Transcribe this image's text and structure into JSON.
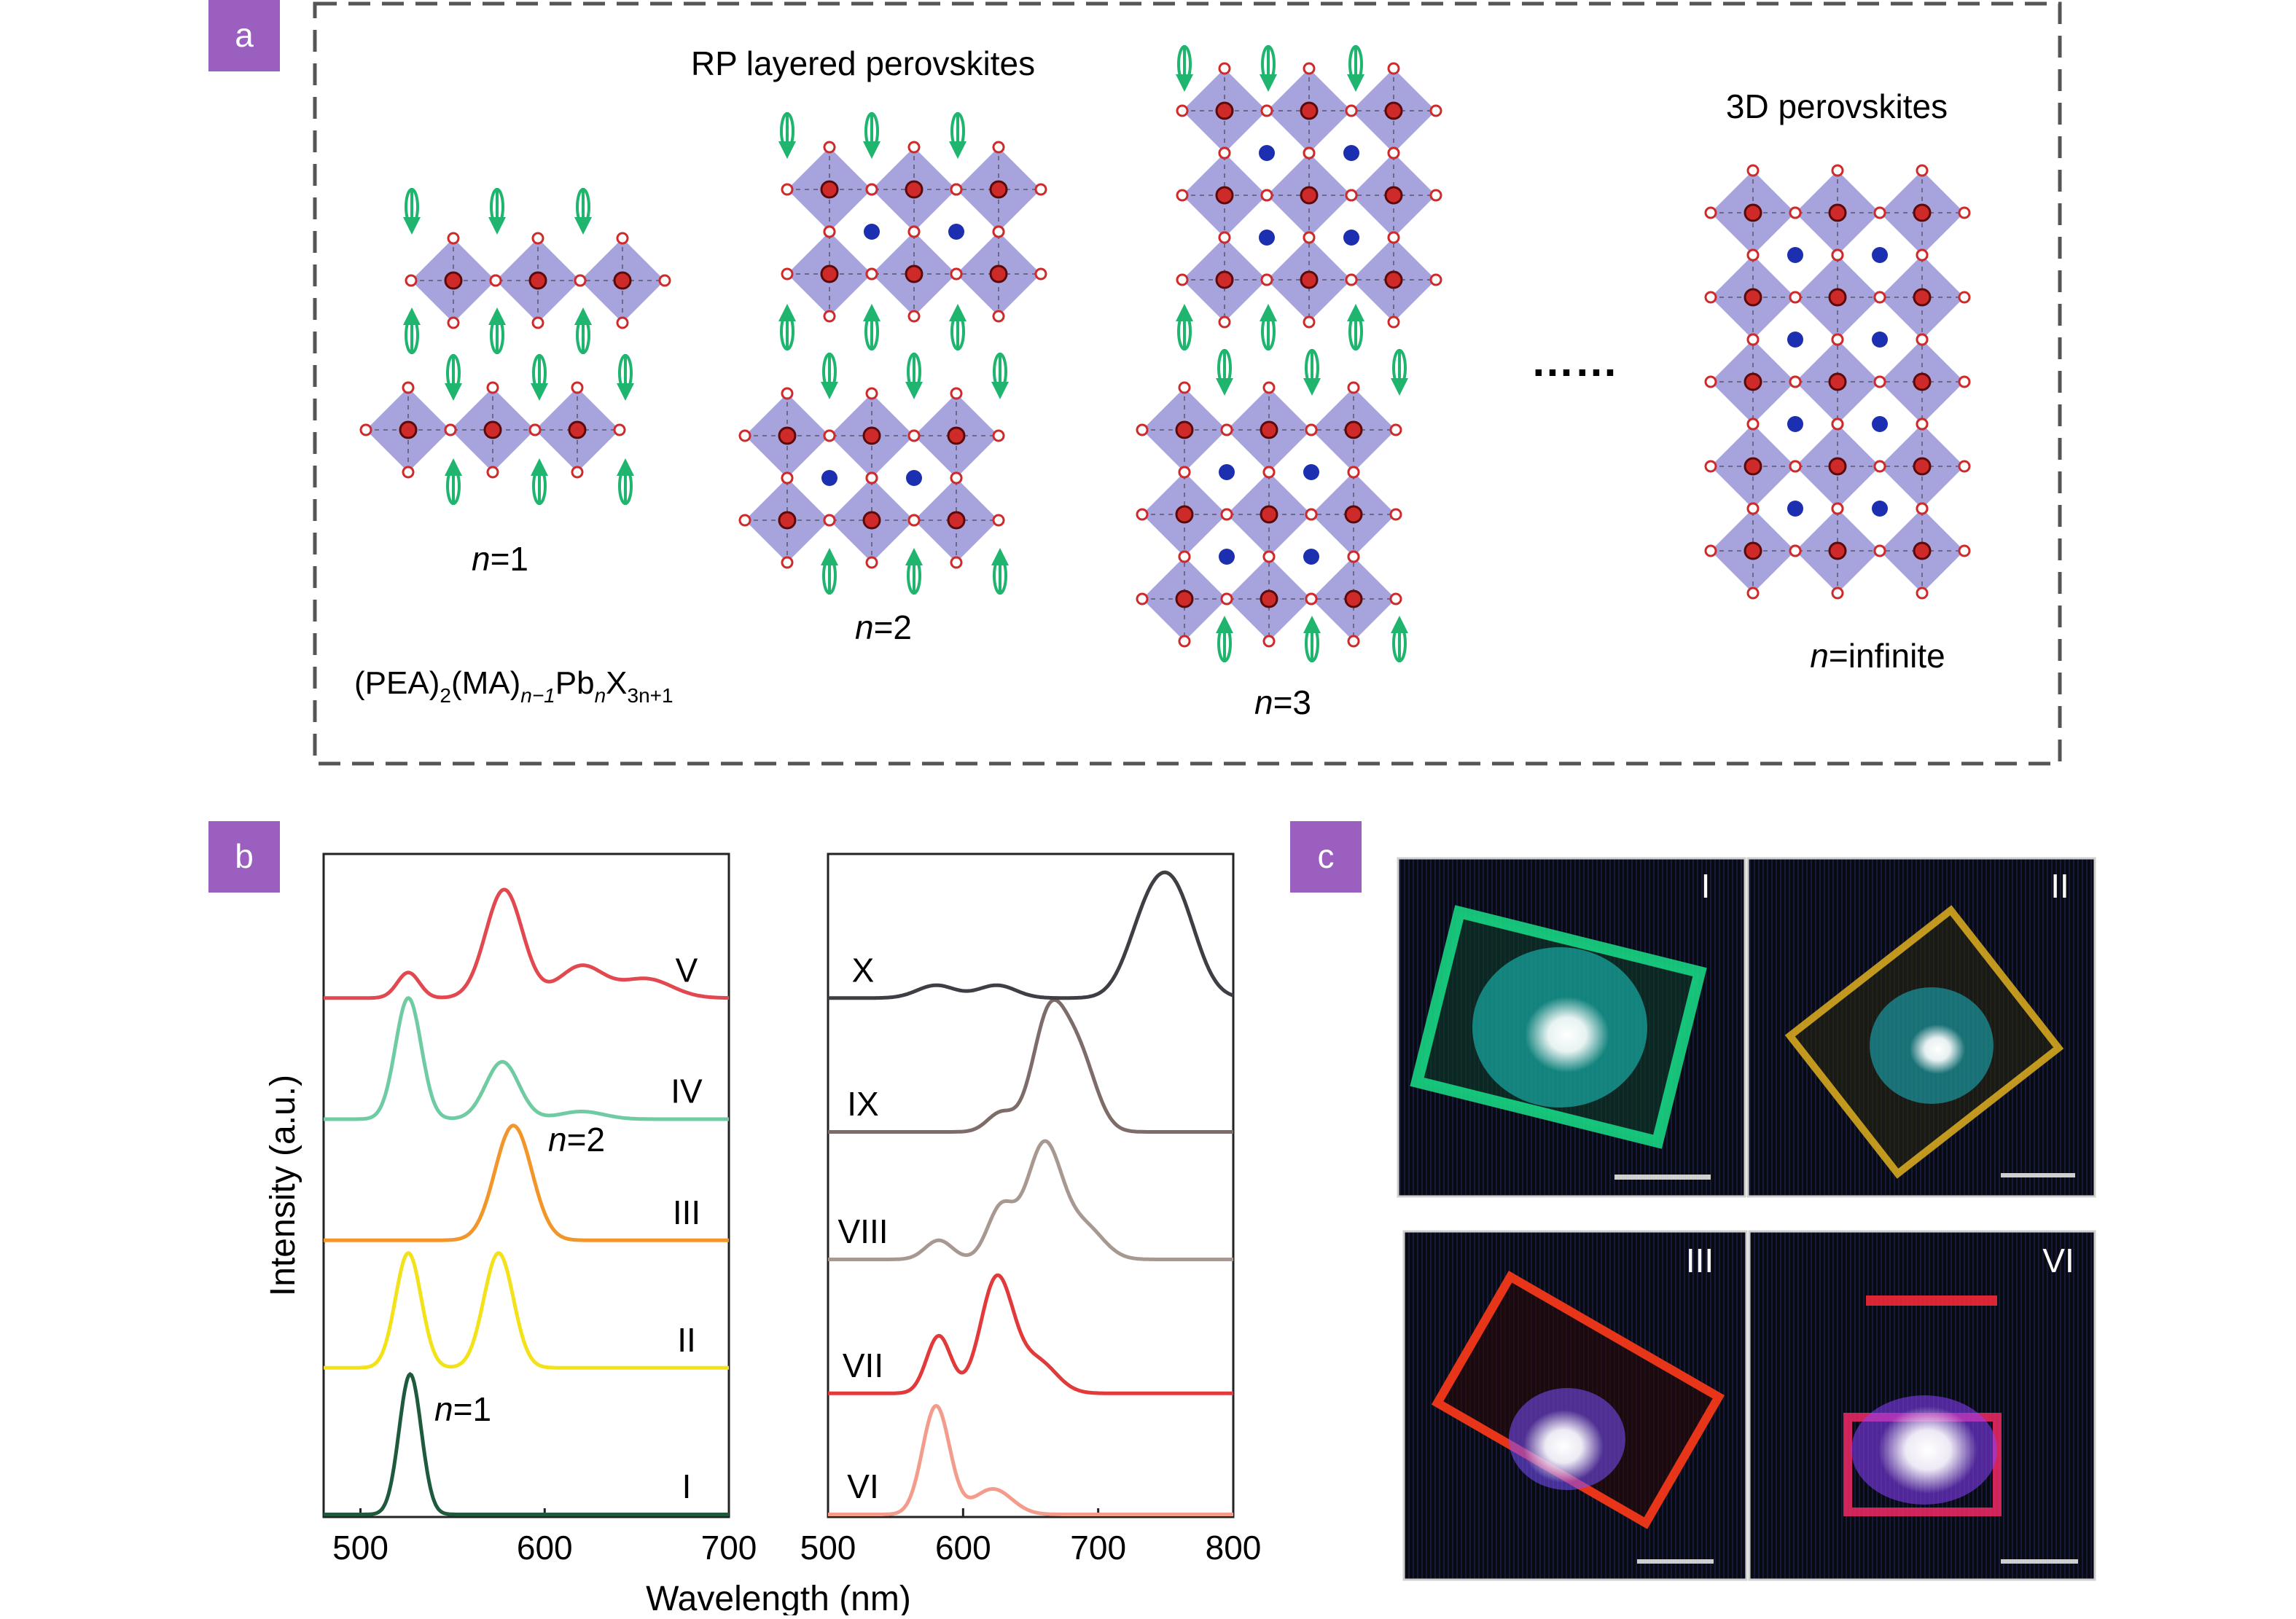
{
  "panel_a": {
    "letter": "a",
    "title_rp": "RP layered perovskites",
    "title_3d": "3D perovskites",
    "formula": {
      "pre": "(PEA)",
      "sub1": "2",
      "mid1": "(MA)",
      "sub2": "n−1",
      "mid2": "Pb",
      "sub3": "n",
      "mid3": "X",
      "sub4": "3n+1"
    },
    "labels": [
      {
        "n": "n",
        "rest": "=1"
      },
      {
        "n": "n",
        "rest": "=2"
      },
      {
        "n": "n",
        "rest": "=3"
      },
      {
        "n": "n",
        "rest": "=infinite"
      }
    ],
    "ellipsis": "……",
    "colors": {
      "octahedron": "#a7a3dc",
      "atom_red": "#cf2a2a",
      "atom_blue": "#1c2fb0",
      "arrow_green": "#1fb56e",
      "frame": "#555555"
    }
  },
  "panel_b": {
    "letter": "b",
    "ylabel": "Intensity (a.u.)",
    "xlabel": "Wavelength (nm)",
    "annotations": [
      {
        "n": "n",
        "rest": "=1"
      },
      {
        "n": "n",
        "rest": "=2"
      }
    ]
  },
  "panel_c": {
    "letter": "c",
    "images": [
      {
        "label": "I",
        "glow": "#19e08a"
      },
      {
        "label": "II",
        "glow": "#e0b020"
      },
      {
        "label": "III",
        "glow": "#ff3a1a"
      },
      {
        "label": "VI",
        "glow": "#ff2a3a"
      }
    ]
  },
  "badge_color": "#9b5fc0",
  "chart_data": [
    {
      "type": "line",
      "xlim": [
        480,
        700
      ],
      "xticks": [
        500,
        600,
        700
      ],
      "ylim": [
        0,
        5.2
      ],
      "series": [
        {
          "name": "I",
          "color": "#1e5a3c",
          "offset": 0,
          "peaks": [
            [
              527,
              1.1,
              6
            ]
          ]
        },
        {
          "name": "II",
          "color": "#f3e21a",
          "offset": 1.15,
          "peaks": [
            [
              526,
              0.9,
              7
            ],
            [
              575,
              0.9,
              8
            ]
          ]
        },
        {
          "name": "III",
          "color": "#f3962a",
          "offset": 2.15,
          "peaks": [
            [
              583,
              0.9,
              10
            ]
          ]
        },
        {
          "name": "IV",
          "color": "#6fcca2",
          "offset": 3.1,
          "peaks": [
            [
              526,
              0.95,
              7
            ],
            [
              577,
              0.45,
              9
            ],
            [
              620,
              0.06,
              12
            ]
          ]
        },
        {
          "name": "V",
          "color": "#e2484f",
          "offset": 4.05,
          "peaks": [
            [
              526,
              0.2,
              6
            ],
            [
              578,
              0.85,
              10
            ],
            [
              620,
              0.25,
              12
            ],
            [
              655,
              0.15,
              14
            ]
          ]
        }
      ]
    },
    {
      "type": "line",
      "xlim": [
        500,
        800
      ],
      "xticks": [
        500,
        600,
        700,
        800
      ],
      "ylim": [
        0,
        5.2
      ],
      "series": [
        {
          "name": "VI",
          "color": "#f39c8c",
          "offset": 0,
          "peaks": [
            [
              580,
              0.85,
              10
            ],
            [
              622,
              0.2,
              14
            ]
          ]
        },
        {
          "name": "VII",
          "color": "#e23a3a",
          "offset": 0.95,
          "peaks": [
            [
              582,
              0.45,
              9
            ],
            [
              625,
              0.9,
              12
            ],
            [
              655,
              0.25,
              14
            ]
          ]
        },
        {
          "name": "VIII",
          "color": "#a89892",
          "offset": 2.0,
          "peaks": [
            [
              582,
              0.15,
              10
            ],
            [
              628,
              0.4,
              10
            ],
            [
              660,
              0.9,
              13
            ],
            [
              690,
              0.25,
              14
            ]
          ]
        },
        {
          "name": "IX",
          "color": "#7d6c68",
          "offset": 3.0,
          "peaks": [
            [
              628,
              0.15,
              10
            ],
            [
              663,
              0.85,
              12
            ],
            [
              685,
              0.6,
              13
            ]
          ]
        },
        {
          "name": "X",
          "color": "#3e3e44",
          "offset": 4.05,
          "peaks": [
            [
              580,
              0.1,
              14
            ],
            [
              625,
              0.1,
              14
            ],
            [
              735,
              0.5,
              15
            ],
            [
              757,
              0.75,
              16
            ]
          ]
        }
      ]
    }
  ]
}
